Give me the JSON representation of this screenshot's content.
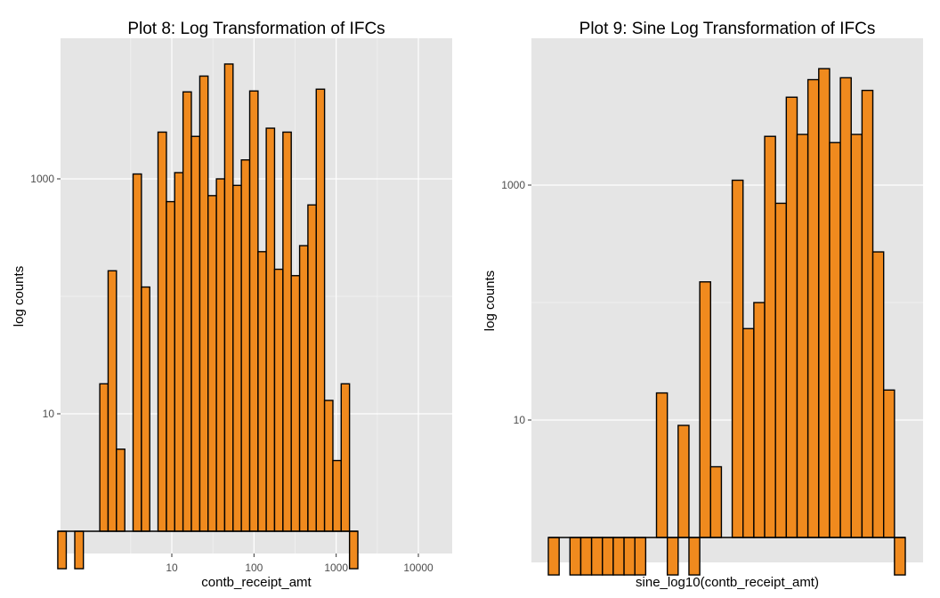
{
  "chart_data": [
    {
      "type": "bar",
      "title": "Plot 8: Log Transformation of IFCs",
      "xlabel": "contb_receipt_amt",
      "ylabel": "log counts",
      "x_scale": "log10",
      "y_scale": "log10",
      "xlim": [
        0.25,
        25000
      ],
      "ylim": [
        0.2,
        25000
      ],
      "baseline": 1,
      "x_ticks": [
        10,
        100,
        1000,
        10000
      ],
      "x_tick_labels": [
        "10",
        "100",
        "1000",
        "10000"
      ],
      "y_ticks": [
        10,
        1000
      ],
      "y_tick_labels": [
        "10",
        "1000"
      ],
      "grid": true,
      "bar_color": "#F08A1E",
      "bar_edge_color": "#000000",
      "panel_color": "#E5E5E5",
      "bars": [
        {
          "x_left": 0.41,
          "x_right": 0.52,
          "count": 0.48
        },
        {
          "x_left": 0.66,
          "x_right": 0.84,
          "count": 0.48
        },
        {
          "x_left": 1.33,
          "x_right": 1.68,
          "count": 18
        },
        {
          "x_left": 1.68,
          "x_right": 2.12,
          "count": 165
        },
        {
          "x_left": 2.12,
          "x_right": 2.68,
          "count": 5
        },
        {
          "x_left": 3.38,
          "x_right": 4.27,
          "count": 1100
        },
        {
          "x_left": 4.27,
          "x_right": 5.39,
          "count": 120
        },
        {
          "x_left": 6.8,
          "x_right": 8.6,
          "count": 2500
        },
        {
          "x_left": 8.6,
          "x_right": 10.85,
          "count": 640
        },
        {
          "x_left": 10.85,
          "x_right": 13.7,
          "count": 1130
        },
        {
          "x_left": 13.7,
          "x_right": 17.3,
          "count": 5500
        },
        {
          "x_left": 17.3,
          "x_right": 21.9,
          "count": 2300
        },
        {
          "x_left": 21.9,
          "x_right": 27.6,
          "count": 7500
        },
        {
          "x_left": 27.6,
          "x_right": 34.9,
          "count": 720
        },
        {
          "x_left": 34.9,
          "x_right": 44.0,
          "count": 1000
        },
        {
          "x_left": 44.0,
          "x_right": 55.6,
          "count": 9500
        },
        {
          "x_left": 55.6,
          "x_right": 70.2,
          "count": 880
        },
        {
          "x_left": 70.2,
          "x_right": 88.7,
          "count": 1450
        },
        {
          "x_left": 88.7,
          "x_right": 112,
          "count": 5600
        },
        {
          "x_left": 112,
          "x_right": 141,
          "count": 240
        },
        {
          "x_left": 141,
          "x_right": 178,
          "count": 2700
        },
        {
          "x_left": 178,
          "x_right": 225,
          "count": 170
        },
        {
          "x_left": 225,
          "x_right": 284,
          "count": 2500
        },
        {
          "x_left": 284,
          "x_right": 359,
          "count": 150
        },
        {
          "x_left": 359,
          "x_right": 453,
          "count": 270
        },
        {
          "x_left": 453,
          "x_right": 572,
          "count": 600
        },
        {
          "x_left": 572,
          "x_right": 722,
          "count": 5800
        },
        {
          "x_left": 722,
          "x_right": 912,
          "count": 13
        },
        {
          "x_left": 912,
          "x_right": 1151,
          "count": 4
        },
        {
          "x_left": 1151,
          "x_right": 1453,
          "count": 18
        },
        {
          "x_left": 1453,
          "x_right": 1835,
          "count": 0.48
        }
      ]
    },
    {
      "type": "bar",
      "title": "Plot 9: Sine Log Transformation of IFCs",
      "xlabel": "sine_log10(contb_receipt_amt)",
      "ylabel": "log counts",
      "y_scale": "log10",
      "baseline": 1,
      "y_ticks": [
        10,
        1000
      ],
      "y_tick_labels": [
        "10",
        "1000"
      ],
      "grid": true,
      "bar_color": "#F08A1E",
      "bar_edge_color": "#000000",
      "panel_color": "#E5E5E5",
      "counts": [
        0.48,
        1,
        0.48,
        0.48,
        0.48,
        0.48,
        0.48,
        0.48,
        0.48,
        1,
        17,
        0.48,
        9,
        0.48,
        150,
        4,
        1,
        1100,
        60,
        100,
        2600,
        700,
        5600,
        2700,
        7900,
        9800,
        2300,
        8200,
        2700,
        6400,
        270,
        18,
        0.48
      ]
    }
  ]
}
